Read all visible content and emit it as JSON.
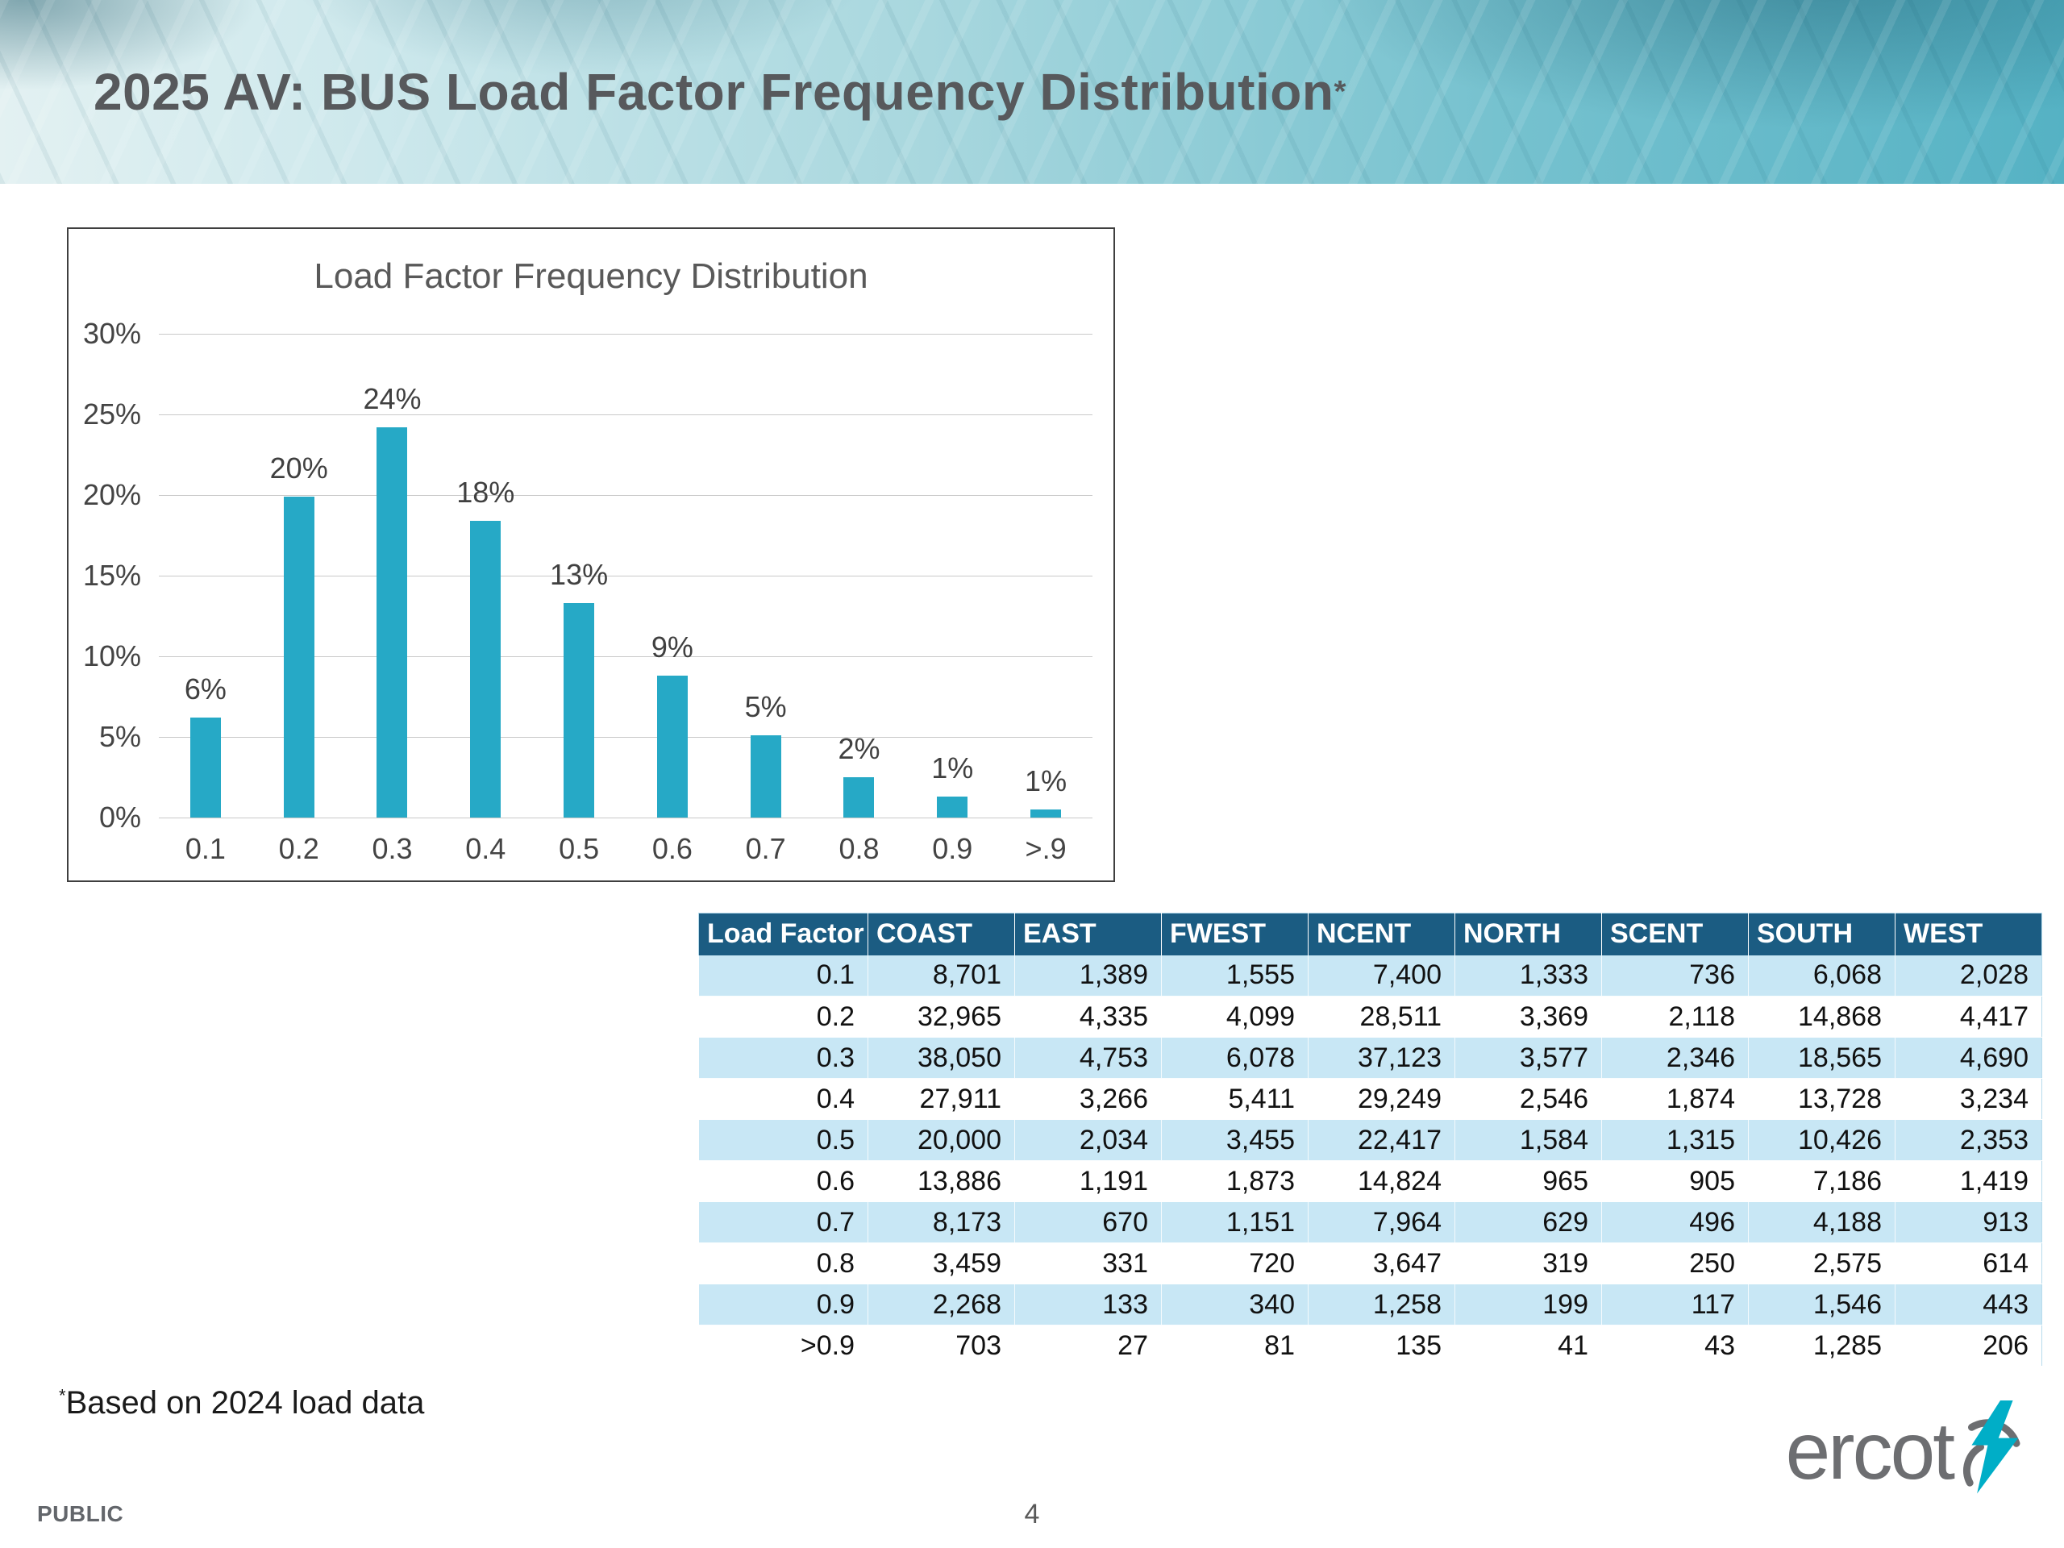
{
  "header": {
    "title": "2025 AV: BUS Load Factor Frequency Distribution",
    "title_superscript": "*"
  },
  "chart_data": {
    "type": "bar",
    "title": "Load Factor Frequency Distribution",
    "categories": [
      "0.1",
      "0.2",
      "0.3",
      "0.4",
      "0.5",
      "0.6",
      "0.7",
      "0.8",
      "0.9",
      ">.9"
    ],
    "values": [
      6.2,
      19.9,
      24.2,
      18.4,
      13.3,
      8.8,
      5.1,
      2.5,
      1.3,
      0.5
    ],
    "bar_labels": [
      "6%",
      "20%",
      "24%",
      "18%",
      "13%",
      "9%",
      "5%",
      "2%",
      "1%",
      "1%"
    ],
    "xlabel": "",
    "ylabel": "",
    "ylim": [
      0,
      30
    ],
    "ytick_interval": 5,
    "ytick_labels": [
      "0%",
      "5%",
      "10%",
      "15%",
      "20%",
      "25%",
      "30%"
    ],
    "grid": true,
    "legend": false,
    "bar_color": "#26A9C6"
  },
  "table": {
    "columns": [
      "Load Factor",
      "COAST",
      "EAST",
      "FWEST",
      "NCENT",
      "NORTH",
      "SCENT",
      "SOUTH",
      "WEST"
    ],
    "rows": [
      [
        "0.1",
        "8,701",
        "1,389",
        "1,555",
        "7,400",
        "1,333",
        "736",
        "6,068",
        "2,028"
      ],
      [
        "0.2",
        "32,965",
        "4,335",
        "4,099",
        "28,511",
        "3,369",
        "2,118",
        "14,868",
        "4,417"
      ],
      [
        "0.3",
        "38,050",
        "4,753",
        "6,078",
        "37,123",
        "3,577",
        "2,346",
        "18,565",
        "4,690"
      ],
      [
        "0.4",
        "27,911",
        "3,266",
        "5,411",
        "29,249",
        "2,546",
        "1,874",
        "13,728",
        "3,234"
      ],
      [
        "0.5",
        "20,000",
        "2,034",
        "3,455",
        "22,417",
        "1,584",
        "1,315",
        "10,426",
        "2,353"
      ],
      [
        "0.6",
        "13,886",
        "1,191",
        "1,873",
        "14,824",
        "965",
        "905",
        "7,186",
        "1,419"
      ],
      [
        "0.7",
        "8,173",
        "670",
        "1,151",
        "7,964",
        "629",
        "496",
        "4,188",
        "913"
      ],
      [
        "0.8",
        "3,459",
        "331",
        "720",
        "3,647",
        "319",
        "250",
        "2,575",
        "614"
      ],
      [
        "0.9",
        "2,268",
        "133",
        "340",
        "1,258",
        "199",
        "117",
        "1,546",
        "443"
      ],
      [
        ">0.9",
        "703",
        "27",
        "81",
        "135",
        "41",
        "43",
        "1,285",
        "206"
      ]
    ],
    "header_bg": "#1B5C82",
    "alt_row_bg": "#C8E7F5"
  },
  "footnote": {
    "marker": "*",
    "text": "Based on 2024 load data"
  },
  "footer": {
    "classification": "PUBLIC",
    "page_number": "4",
    "logo_text": "ercot"
  },
  "colors": {
    "accent_teal": "#26A9C6",
    "title_gray": "#57595C",
    "logo_gray": "#6D6E71",
    "logo_bolt_teal": "#00AEC7"
  }
}
